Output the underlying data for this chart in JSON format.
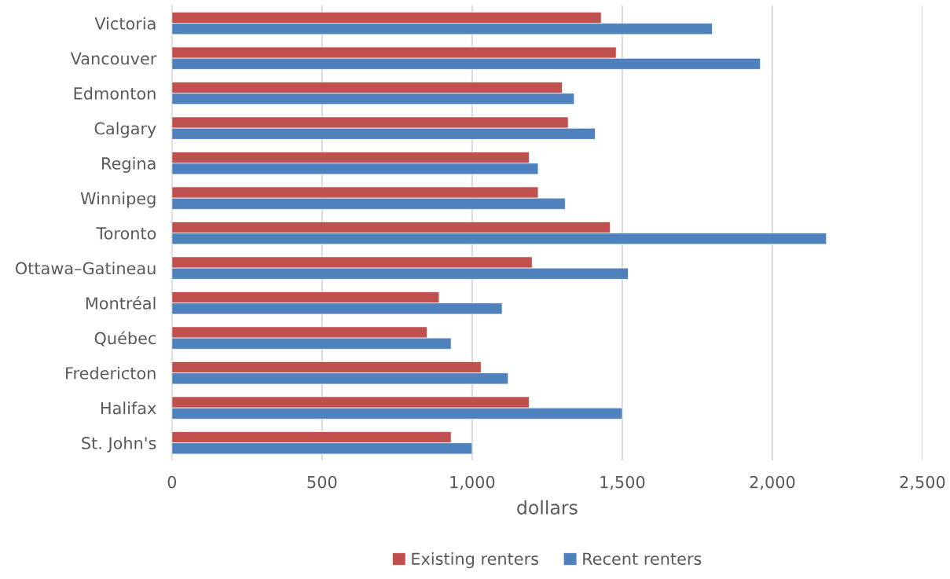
{
  "chart_data": {
    "type": "bar",
    "orientation": "horizontal",
    "xlabel": "dollars",
    "categories": [
      "Victoria",
      "Vancouver",
      "Edmonton",
      "Calgary",
      "Regina",
      "Winnipeg",
      "Toronto",
      "Ottawa–Gatineau",
      "Montréal",
      "Québec",
      "Fredericton",
      "Halifax",
      "St. John's"
    ],
    "series": [
      {
        "name": "Existing renters",
        "color": "#c0504d",
        "values": [
          1430,
          1480,
          1300,
          1320,
          1190,
          1220,
          1460,
          1200,
          890,
          850,
          1030,
          1190,
          930
        ]
      },
      {
        "name": "Recent renters",
        "color": "#4f81bd",
        "values": [
          1800,
          1960,
          1340,
          1410,
          1220,
          1310,
          2180,
          1520,
          1100,
          930,
          1120,
          1500,
          1000
        ]
      }
    ],
    "xlim": [
      0,
      2500
    ],
    "xticks": [
      0,
      {
        "value": 500,
        "label": "500"
      },
      {
        "value": 1000,
        "label": "1,000"
      },
      {
        "value": 1500,
        "label": "1,500"
      },
      {
        "value": 2000,
        "label": "2,000"
      },
      {
        "value": 2500,
        "label": "2,500"
      }
    ],
    "grid": "x",
    "legend": "bottom"
  }
}
